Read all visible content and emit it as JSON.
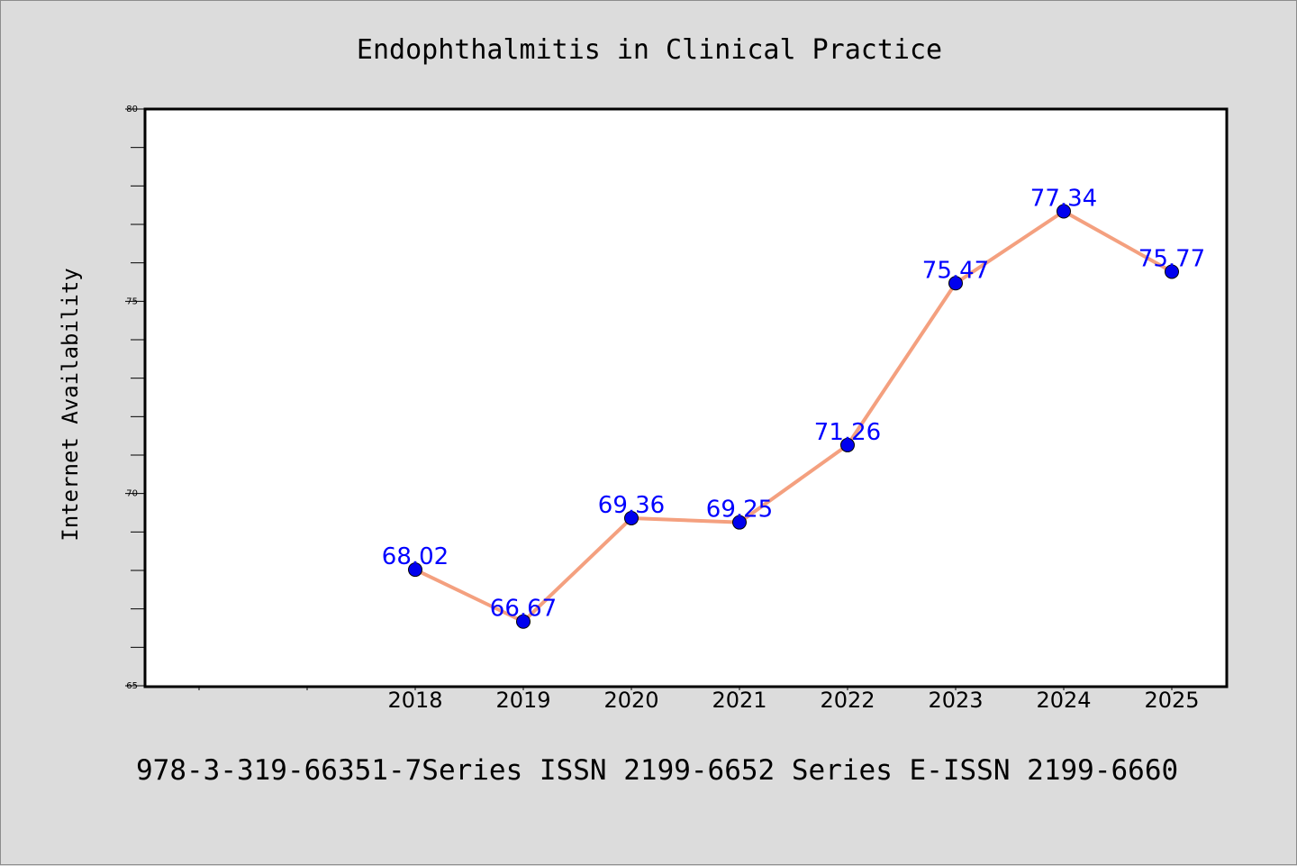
{
  "colors": {
    "background": "#dcdcdc",
    "plot_background": "#ffffff",
    "line": "#f4a07f",
    "marker": "#0000ee",
    "data_label": "#0000ff"
  },
  "footer": "978-3-319-66351-7Series ISSN 2199-6652 Series E-ISSN 2199-6660",
  "chart_data": {
    "type": "line",
    "title": "Endophthalmitis in Clinical Practice",
    "xlabel": "",
    "ylabel": "Internet Availability",
    "categories": [
      "2018",
      "2019",
      "2020",
      "2021",
      "2022",
      "2023",
      "2024",
      "2025"
    ],
    "values": [
      68.02,
      66.67,
      69.36,
      69.25,
      71.26,
      75.47,
      77.34,
      75.77
    ],
    "value_labels": [
      "68.02",
      "66.67",
      "69.36",
      "69.25",
      "71.26",
      "75.47",
      "77.34",
      "75.77"
    ],
    "ylim": [
      65,
      80
    ],
    "yticks": [
      65,
      70,
      75,
      80
    ],
    "x_slots": 10,
    "first_category_slot": 2,
    "grid": false,
    "legend": "none"
  }
}
